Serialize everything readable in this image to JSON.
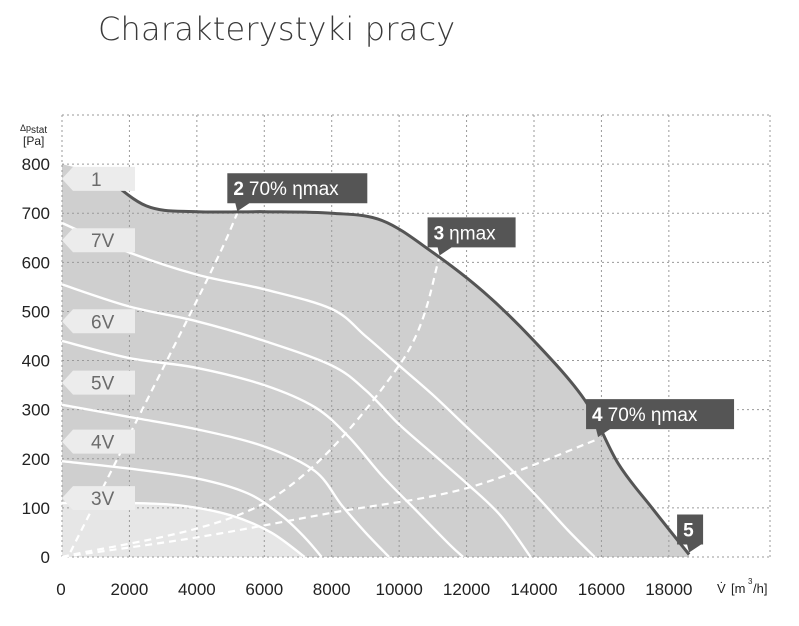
{
  "page": {
    "title": "Charakterystyki pracy"
  },
  "chart_data": {
    "type": "line",
    "title": "",
    "xlabel": "V̇ [m³/h]",
    "ylabel": "Δp stat [Pa]",
    "ylabel_parts": {
      "delta": "Δp",
      "sub": "stat",
      "unit": "[Pa]"
    },
    "xlabel_parts": {
      "v": "V̇",
      "unit_pre": "[m",
      "sup": "3",
      "unit_post": "/h]"
    },
    "xlim": [
      0,
      21000
    ],
    "ylim": [
      0,
      900
    ],
    "x_ticks": [
      0,
      2000,
      4000,
      6000,
      8000,
      10000,
      12000,
      14000,
      16000,
      18000
    ],
    "y_ticks": [
      0,
      100,
      200,
      300,
      400,
      500,
      600,
      700,
      800
    ],
    "x_tick_labels": [
      "0",
      "2000",
      "4000",
      "6000",
      "8000",
      "10000",
      "12000",
      "14000",
      "16000",
      "18000"
    ],
    "y_tick_labels": [
      "0",
      "100",
      "200",
      "300",
      "400",
      "500",
      "600",
      "700",
      "800"
    ],
    "grid": true,
    "envelope": {
      "name": "1",
      "points": [
        [
          1200,
          780
        ],
        [
          2500,
          715
        ],
        [
          4000,
          703
        ],
        [
          6000,
          703
        ],
        [
          8000,
          700
        ],
        [
          9500,
          685
        ],
        [
          11000,
          620
        ],
        [
          12500,
          540
        ],
        [
          14000,
          440
        ],
        [
          15500,
          320
        ],
        [
          16500,
          190
        ],
        [
          17500,
          100
        ],
        [
          18600,
          5
        ]
      ]
    },
    "series": [
      {
        "name": "7V",
        "points": [
          [
            0,
            680
          ],
          [
            2000,
            620
          ],
          [
            4000,
            575
          ],
          [
            6000,
            545
          ],
          [
            8000,
            505
          ],
          [
            9000,
            450
          ],
          [
            10000,
            390
          ],
          [
            11000,
            330
          ],
          [
            12000,
            265
          ],
          [
            13000,
            200
          ],
          [
            14000,
            130
          ],
          [
            15000,
            55
          ],
          [
            15800,
            0
          ]
        ]
      },
      {
        "name": "6V",
        "points": [
          [
            0,
            555
          ],
          [
            2000,
            510
          ],
          [
            4000,
            480
          ],
          [
            6000,
            440
          ],
          [
            8000,
            390
          ],
          [
            9000,
            340
          ],
          [
            10000,
            270
          ],
          [
            11000,
            210
          ],
          [
            12000,
            150
          ],
          [
            13000,
            85
          ],
          [
            13900,
            0
          ]
        ]
      },
      {
        "name": "5V",
        "points": [
          [
            0,
            440
          ],
          [
            2000,
            405
          ],
          [
            4000,
            385
          ],
          [
            6000,
            350
          ],
          [
            7500,
            305
          ],
          [
            8500,
            245
          ],
          [
            9500,
            165
          ],
          [
            10500,
            95
          ],
          [
            11500,
            25
          ],
          [
            11900,
            0
          ]
        ]
      },
      {
        "name": "4V",
        "points": [
          [
            0,
            310
          ],
          [
            2000,
            285
          ],
          [
            4000,
            260
          ],
          [
            6000,
            225
          ],
          [
            7500,
            175
          ],
          [
            8300,
            105
          ],
          [
            9000,
            50
          ],
          [
            9700,
            0
          ]
        ]
      },
      {
        "name": "3V",
        "points": [
          [
            0,
            195
          ],
          [
            2000,
            180
          ],
          [
            4000,
            160
          ],
          [
            5500,
            130
          ],
          [
            6500,
            85
          ],
          [
            7200,
            40
          ],
          [
            7700,
            0
          ]
        ]
      },
      {
        "name": "",
        "points": [
          [
            0,
            110
          ],
          [
            2000,
            110
          ],
          [
            3500,
            105
          ],
          [
            5000,
            85
          ],
          [
            6200,
            50
          ],
          [
            7200,
            0
          ]
        ]
      }
    ],
    "efficiency_lines": [
      {
        "name": "2 70% ηmax",
        "points": [
          [
            250,
            10
          ],
          [
            4200,
            550
          ],
          [
            5200,
            700
          ]
        ]
      },
      {
        "name": "3 ηmax",
        "points": [
          [
            0,
            0
          ],
          [
            6000,
            110
          ],
          [
            10000,
            390
          ],
          [
            11200,
            610
          ]
        ]
      },
      {
        "name": "4 70% ηmax",
        "points": [
          [
            0,
            0
          ],
          [
            4000,
            40
          ],
          [
            8000,
            90
          ],
          [
            12000,
            140
          ],
          [
            15900,
            240
          ]
        ]
      }
    ],
    "voltage_flags": [
      {
        "label": "1",
        "y": 770
      },
      {
        "label": "7V",
        "y": 645
      },
      {
        "label": "6V",
        "y": 480
      },
      {
        "label": "5V",
        "y": 355
      },
      {
        "label": "4V",
        "y": 235
      },
      {
        "label": "3V",
        "y": 120
      }
    ],
    "callouts": [
      {
        "num": "2",
        "text": "70% ηmax",
        "x": 5200,
        "y": 700
      },
      {
        "num": "3",
        "text": "ηmax",
        "x": 11200,
        "y": 610
      },
      {
        "num": "4",
        "text": "70% ηmax",
        "x": 15900,
        "y": 240
      },
      {
        "num": "5",
        "text": "",
        "x": 18600,
        "y": 5
      }
    ],
    "colors": {
      "envelope_fill": "#cfcfcf",
      "low_fill": "#e6e6e6",
      "envelope_line": "#555555",
      "curve": "#ffffff",
      "callout": "#555555",
      "flag": "#ececec",
      "grid": "#9a9a9a"
    }
  }
}
